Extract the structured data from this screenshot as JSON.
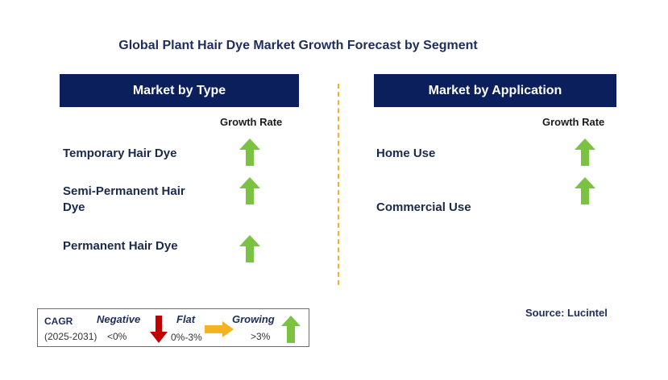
{
  "title": "Global Plant Hair Dye Market Growth Forecast by Segment",
  "left_panel": {
    "header": "Market by Type",
    "growth_label": "Growth Rate",
    "rows": [
      {
        "label": "Temporary Hair Dye",
        "trend": "growing"
      },
      {
        "label": "Semi-Permanent Hair Dye",
        "trend": "growing"
      },
      {
        "label": "Permanent Hair Dye",
        "trend": "growing"
      }
    ]
  },
  "right_panel": {
    "header": "Market by Application",
    "growth_label": "Growth Rate",
    "rows": [
      {
        "label": "Home Use",
        "trend": "growing"
      },
      {
        "label": "Commercial Use",
        "trend": "growing"
      }
    ]
  },
  "legend": {
    "cagr_label": "CAGR",
    "period": "(2025-2031)",
    "negative_label": "Negative",
    "negative_range": "<0%",
    "flat_label": "Flat",
    "flat_range": "0%-3%",
    "growing_label": "Growing",
    "growing_range": ">3%"
  },
  "source": "Source: Lucintel",
  "colors": {
    "header_bg": "#0a1f5c",
    "growing_arrow": "#7cc242",
    "negative_arrow": "#c00000",
    "flat_arrow": "#f5b324",
    "divider": "#f5b324"
  }
}
